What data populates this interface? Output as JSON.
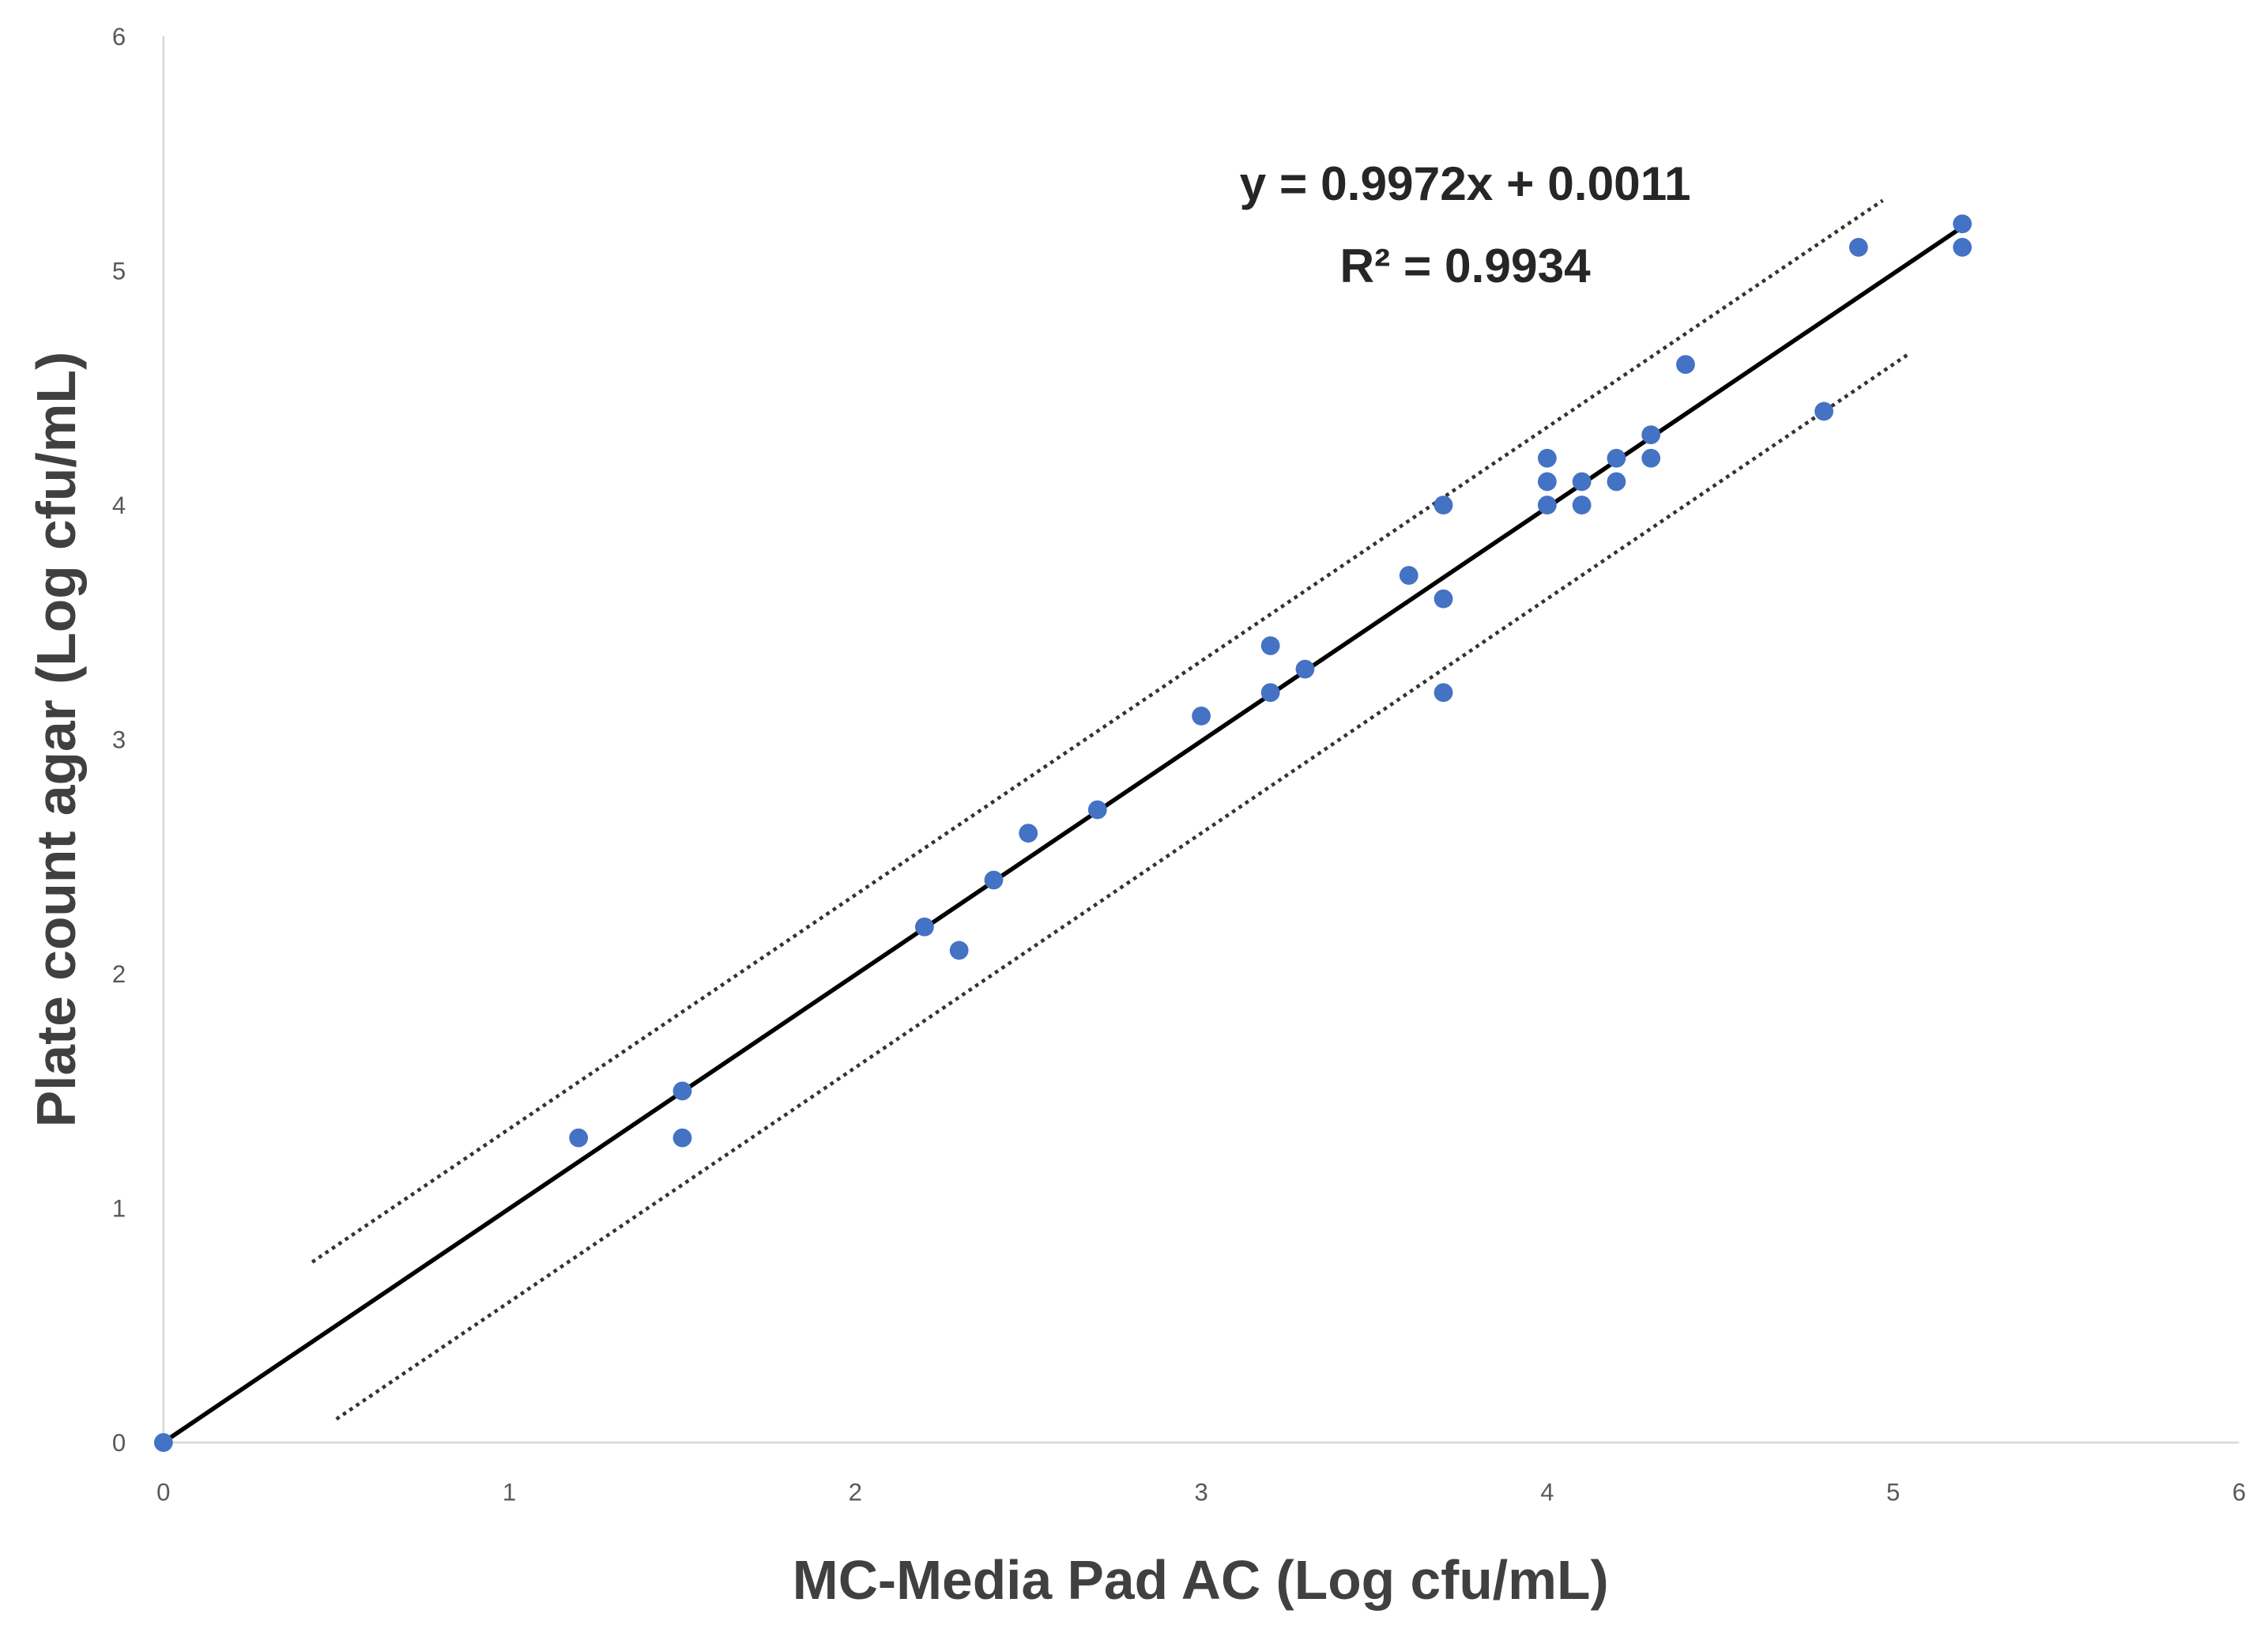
{
  "chart_data": {
    "type": "scatter",
    "title": "",
    "xlabel": "MC-Media Pad AC (Log cfu/mL)",
    "ylabel": "Plate count agar (Log cfu/mL)",
    "xlim": [
      0,
      6
    ],
    "ylim": [
      0,
      6
    ],
    "xticks": [
      "0",
      "1",
      "2",
      "3",
      "4",
      "5",
      "6"
    ],
    "yticks": [
      "0",
      "1",
      "2",
      "3",
      "4",
      "5",
      "6"
    ],
    "grid": false,
    "point_color": "#4472C4",
    "points": [
      [
        0,
        0
      ],
      [
        1.2,
        1.3
      ],
      [
        1.5,
        1.5
      ],
      [
        1.5,
        1.3
      ],
      [
        2.2,
        2.2
      ],
      [
        2.3,
        2.1
      ],
      [
        2.4,
        2.4
      ],
      [
        2.5,
        2.6
      ],
      [
        2.7,
        2.7
      ],
      [
        3.0,
        3.1
      ],
      [
        3.2,
        3.4
      ],
      [
        3.2,
        3.2
      ],
      [
        3.3,
        3.3
      ],
      [
        3.6,
        3.7
      ],
      [
        3.7,
        4.0
      ],
      [
        3.7,
        3.6
      ],
      [
        3.7,
        3.2
      ],
      [
        4.0,
        4.2
      ],
      [
        4.0,
        4.1
      ],
      [
        4.0,
        4.0
      ],
      [
        4.1,
        4.1
      ],
      [
        4.1,
        4.0
      ],
      [
        4.2,
        4.2
      ],
      [
        4.2,
        4.1
      ],
      [
        4.3,
        4.3
      ],
      [
        4.3,
        4.2
      ],
      [
        4.4,
        4.6
      ],
      [
        4.8,
        4.4
      ],
      [
        4.9,
        5.1
      ],
      [
        5.2,
        5.2
      ],
      [
        5.2,
        5.1
      ]
    ],
    "trendline": {
      "slope": 0.9972,
      "intercept": 0.0011,
      "x_range": [
        0,
        5.2
      ],
      "color": "#000000"
    },
    "bound_lines": [
      {
        "style": "dotted",
        "from": [
          0.43,
          0.77
        ],
        "to": [
          4.97,
          5.3
        ]
      },
      {
        "style": "dotted",
        "from": [
          0.5,
          0.1
        ],
        "to": [
          5.04,
          4.64
        ]
      }
    ],
    "annotations": [
      "y = 0.9972x + 0.0011",
      "R² = 0.9934"
    ]
  }
}
